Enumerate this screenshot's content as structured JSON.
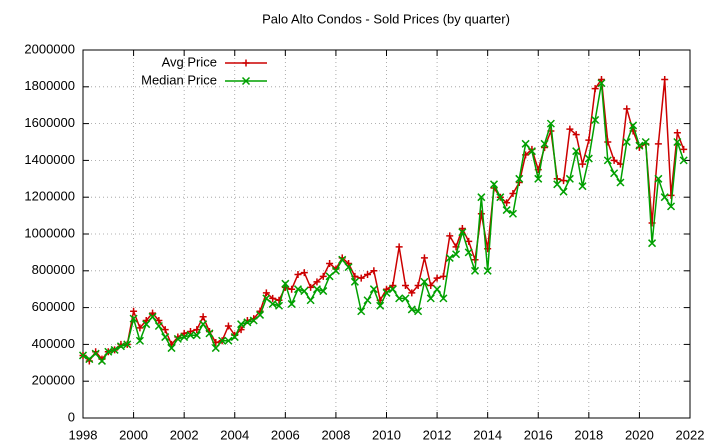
{
  "chart_data": {
    "type": "line",
    "title": "Palo Alto Condos - Sold Prices (by quarter)",
    "x": [
      1998,
      1998.25,
      1998.5,
      1998.75,
      1999,
      1999.25,
      1999.5,
      1999.75,
      2000,
      2000.25,
      2000.5,
      2000.75,
      2001,
      2001.25,
      2001.5,
      2001.75,
      2002,
      2002.25,
      2002.5,
      2002.75,
      2003,
      2003.25,
      2003.5,
      2003.75,
      2004,
      2004.25,
      2004.5,
      2004.75,
      2005,
      2005.25,
      2005.5,
      2005.75,
      2006,
      2006.25,
      2006.5,
      2006.75,
      2007,
      2007.25,
      2007.5,
      2007.75,
      2008,
      2008.25,
      2008.5,
      2008.75,
      2009,
      2009.25,
      2009.5,
      2009.75,
      2010,
      2010.25,
      2010.5,
      2010.75,
      2011,
      2011.25,
      2011.5,
      2011.75,
      2012,
      2012.25,
      2012.5,
      2012.75,
      2013,
      2013.25,
      2013.5,
      2013.75,
      2014,
      2014.25,
      2014.5,
      2014.75,
      2015,
      2015.25,
      2015.5,
      2015.75,
      2016,
      2016.25,
      2016.5,
      2016.75,
      2017,
      2017.25,
      2017.5,
      2017.75,
      2018,
      2018.25,
      2018.5,
      2018.75,
      2019,
      2019.25,
      2019.5,
      2019.75,
      2020,
      2020.25,
      2020.5,
      2020.75,
      2021,
      2021.25,
      2021.5,
      2021.75
    ],
    "series": [
      {
        "name": "Avg Price",
        "color": "#cc0000",
        "marker": "plus",
        "values": [
          340000,
          310000,
          360000,
          320000,
          360000,
          370000,
          400000,
          400000,
          580000,
          490000,
          530000,
          570000,
          530000,
          480000,
          400000,
          440000,
          460000,
          470000,
          480000,
          550000,
          470000,
          410000,
          420000,
          500000,
          450000,
          480000,
          530000,
          540000,
          580000,
          680000,
          650000,
          640000,
          710000,
          700000,
          780000,
          790000,
          710000,
          740000,
          770000,
          840000,
          810000,
          870000,
          840000,
          770000,
          760000,
          780000,
          800000,
          640000,
          700000,
          720000,
          930000,
          720000,
          680000,
          720000,
          870000,
          720000,
          760000,
          770000,
          990000,
          930000,
          1030000,
          960000,
          860000,
          1110000,
          920000,
          1250000,
          1200000,
          1170000,
          1220000,
          1280000,
          1430000,
          1460000,
          1350000,
          1470000,
          1560000,
          1300000,
          1290000,
          1570000,
          1540000,
          1380000,
          1510000,
          1790000,
          1840000,
          1500000,
          1400000,
          1380000,
          1680000,
          1560000,
          1470000,
          1490000,
          1060000,
          1490000,
          1840000,
          1210000,
          1550000,
          1460000
        ]
      },
      {
        "name": "Median Price",
        "color": "#00a000",
        "marker": "cross",
        "values": [
          340000,
          320000,
          350000,
          310000,
          360000,
          370000,
          390000,
          400000,
          540000,
          420000,
          510000,
          550000,
          500000,
          440000,
          380000,
          430000,
          440000,
          450000,
          450000,
          510000,
          460000,
          380000,
          420000,
          420000,
          440000,
          510000,
          520000,
          530000,
          560000,
          650000,
          620000,
          610000,
          730000,
          620000,
          700000,
          690000,
          640000,
          700000,
          690000,
          770000,
          800000,
          860000,
          820000,
          740000,
          580000,
          640000,
          700000,
          610000,
          680000,
          700000,
          650000,
          650000,
          590000,
          580000,
          740000,
          650000,
          700000,
          650000,
          870000,
          890000,
          1010000,
          900000,
          800000,
          1200000,
          800000,
          1270000,
          1200000,
          1130000,
          1110000,
          1300000,
          1490000,
          1450000,
          1300000,
          1490000,
          1600000,
          1270000,
          1230000,
          1300000,
          1450000,
          1260000,
          1410000,
          1620000,
          1820000,
          1400000,
          1330000,
          1280000,
          1500000,
          1590000,
          1480000,
          1500000,
          950000,
          1300000,
          1200000,
          1150000,
          1500000,
          1400000
        ]
      }
    ],
    "xlim": [
      1998,
      2022
    ],
    "xticks": [
      1998,
      2000,
      2002,
      2004,
      2006,
      2008,
      2010,
      2012,
      2014,
      2016,
      2018,
      2020,
      2022
    ],
    "ylim": [
      0,
      2000000
    ],
    "yticks": [
      0,
      200000,
      400000,
      600000,
      800000,
      1000000,
      1200000,
      1400000,
      1600000,
      1800000,
      2000000
    ],
    "grid": true,
    "legend": "top-left"
  }
}
